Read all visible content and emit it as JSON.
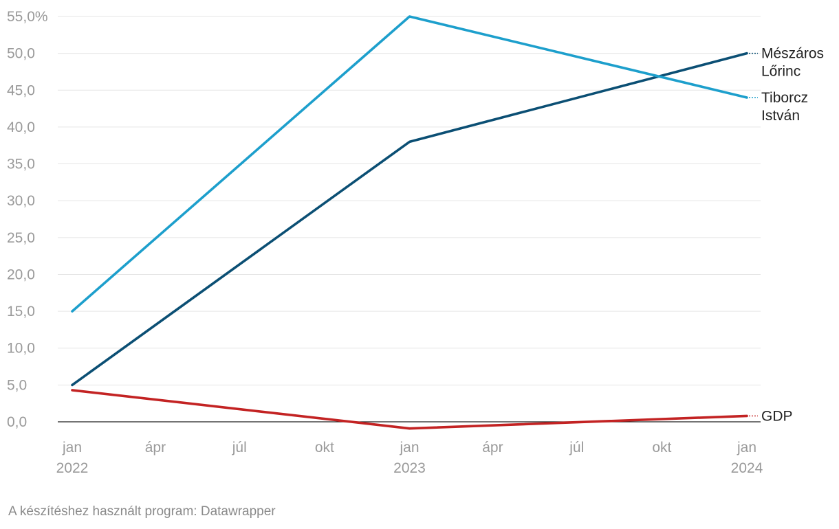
{
  "chart_data": {
    "type": "line",
    "title": "",
    "xlabel": "",
    "ylabel": "",
    "ylim": [
      0,
      55
    ],
    "xlim": [
      "2022-01-01",
      "2024-01-01"
    ],
    "grid": true,
    "legend": "direct labels at right end of lines",
    "y_ticks": [
      "55,0%",
      "50,0",
      "45,0",
      "40,0",
      "35,0",
      "30,0",
      "25,0",
      "20,0",
      "15,0",
      "10,0",
      "5,0",
      "0,0"
    ],
    "y_tick_values": [
      55,
      50,
      45,
      40,
      35,
      30,
      25,
      20,
      15,
      10,
      5,
      0
    ],
    "x_ticks": [
      {
        "date": "2022-01-01",
        "line1": "jan",
        "line2": "2022"
      },
      {
        "date": "2022-04-01",
        "line1": "ápr",
        "line2": ""
      },
      {
        "date": "2022-07-01",
        "line1": "júl",
        "line2": ""
      },
      {
        "date": "2022-10-01",
        "line1": "okt",
        "line2": ""
      },
      {
        "date": "2023-01-01",
        "line1": "jan",
        "line2": "2023"
      },
      {
        "date": "2023-04-01",
        "line1": "ápr",
        "line2": ""
      },
      {
        "date": "2023-07-01",
        "line1": "júl",
        "line2": ""
      },
      {
        "date": "2023-10-01",
        "line1": "okt",
        "line2": ""
      },
      {
        "date": "2024-01-01",
        "line1": "jan",
        "line2": "2024"
      }
    ],
    "series": [
      {
        "name": "Mészáros Lőrinc",
        "label_lines": [
          "Mészáros",
          "Lőrinc"
        ],
        "color": "#0b4f74",
        "x": [
          "2022-01-01",
          "2023-01-01",
          "2024-01-01"
        ],
        "values": [
          5.0,
          38.0,
          50.0
        ]
      },
      {
        "name": "Tiborcz István",
        "label_lines": [
          "Tiborcz",
          "István"
        ],
        "color": "#1d9fcc",
        "x": [
          "2022-01-01",
          "2023-01-01",
          "2024-01-01"
        ],
        "values": [
          15.0,
          55.0,
          44.0
        ]
      },
      {
        "name": "GDP",
        "label_lines": [
          "GDP"
        ],
        "color": "#c32323",
        "x": [
          "2022-01-01",
          "2023-01-01",
          "2024-01-01"
        ],
        "values": [
          4.3,
          -0.9,
          0.8
        ]
      }
    ]
  },
  "footer": {
    "source_text": "A készítéshez használt program: Datawrapper"
  }
}
